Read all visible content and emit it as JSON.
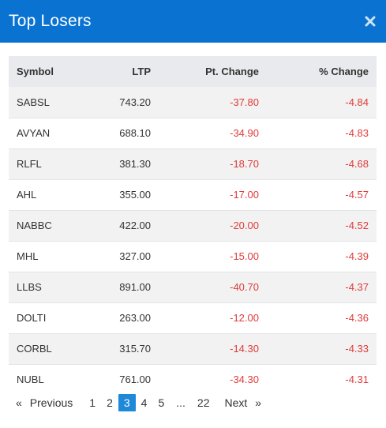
{
  "dialog": {
    "title": "Top Losers",
    "close_icon": "close-icon"
  },
  "table": {
    "headers": {
      "symbol": "Symbol",
      "ltp": "LTP",
      "pt_change": "Pt. Change",
      "pct_change": "% Change"
    },
    "rows": [
      {
        "symbol": "SABSL",
        "ltp": "743.20",
        "pt_change": "-37.80",
        "pct_change": "-4.84"
      },
      {
        "symbol": "AVYAN",
        "ltp": "688.10",
        "pt_change": "-34.90",
        "pct_change": "-4.83"
      },
      {
        "symbol": "RLFL",
        "ltp": "381.30",
        "pt_change": "-18.70",
        "pct_change": "-4.68"
      },
      {
        "symbol": "AHL",
        "ltp": "355.00",
        "pt_change": "-17.00",
        "pct_change": "-4.57"
      },
      {
        "symbol": "NABBC",
        "ltp": "422.00",
        "pt_change": "-20.00",
        "pct_change": "-4.52"
      },
      {
        "symbol": "MHL",
        "ltp": "327.00",
        "pt_change": "-15.00",
        "pct_change": "-4.39"
      },
      {
        "symbol": "LLBS",
        "ltp": "891.00",
        "pt_change": "-40.70",
        "pct_change": "-4.37"
      },
      {
        "symbol": "DOLTI",
        "ltp": "263.00",
        "pt_change": "-12.00",
        "pct_change": "-4.36"
      },
      {
        "symbol": "CORBL",
        "ltp": "315.70",
        "pt_change": "-14.30",
        "pct_change": "-4.33"
      },
      {
        "symbol": "NUBL",
        "ltp": "761.00",
        "pt_change": "-34.30",
        "pct_change": "-4.31"
      }
    ]
  },
  "pagination": {
    "prev_arrow": "«",
    "prev_label": "Previous",
    "pages": [
      "1",
      "2",
      "3",
      "4",
      "5"
    ],
    "active_page": "3",
    "ellipsis": "...",
    "last_page": "22",
    "next_label": "Next",
    "next_arrow": "»"
  },
  "colors": {
    "header_bg": "#0a73d1",
    "negative": "#e03b3b",
    "active_page": "#1e88d9"
  }
}
